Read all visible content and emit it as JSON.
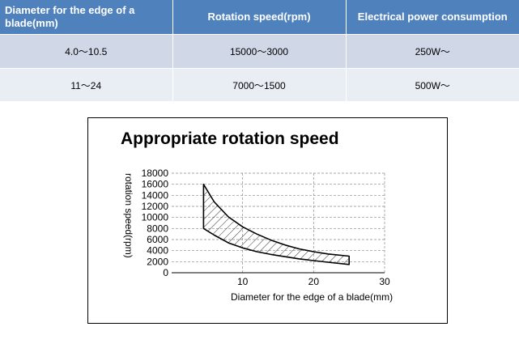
{
  "table": {
    "headers": [
      "Diameter for the edge of a blade(mm)",
      "Rotation speed(rpm)",
      "Electrical power consumption"
    ],
    "rows": [
      [
        "4.0～10.5",
        "15000～3000",
        "250W～"
      ],
      [
        "11～24",
        "7000～1500",
        "500W～"
      ]
    ]
  },
  "chart_data": {
    "type": "area",
    "title": "Appropriate rotation speed",
    "xlabel": "Diameter for the edge of a blade(mm)",
    "ylabel": "rotation speed(rpm)",
    "xlim": [
      0,
      30
    ],
    "ylim": [
      0,
      18000
    ],
    "x_ticks": [
      10,
      20,
      30
    ],
    "y_ticks": [
      0,
      2000,
      4000,
      6000,
      8000,
      10000,
      12000,
      14000,
      16000,
      18000
    ],
    "grid": true,
    "fill": "hatched",
    "series": [
      {
        "role": "upper bound",
        "x": [
          4.5,
          6,
          8,
          10,
          12,
          14,
          16,
          18,
          20,
          22,
          25
        ],
        "y": [
          16000,
          12800,
          10100,
          8300,
          7000,
          5900,
          5000,
          4300,
          3800,
          3400,
          3000
        ]
      },
      {
        "role": "lower bound",
        "x": [
          4.5,
          6,
          8,
          10,
          12,
          14,
          16,
          18,
          20,
          22,
          25
        ],
        "y": [
          8000,
          6800,
          5400,
          4500,
          3800,
          3300,
          2900,
          2500,
          2200,
          1900,
          1500
        ]
      }
    ]
  }
}
